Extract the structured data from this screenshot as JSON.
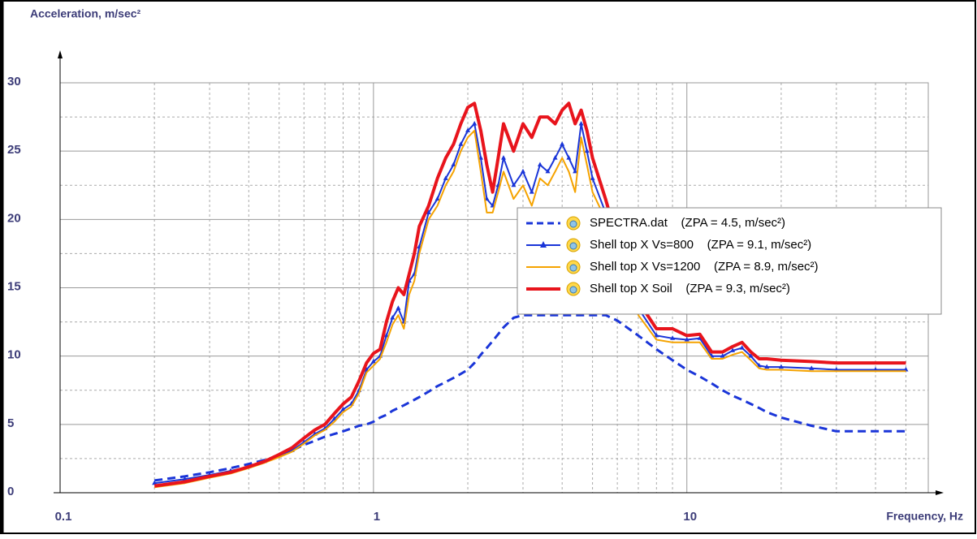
{
  "chart_data": {
    "type": "line",
    "y_label": "Acceleration, m/sec²",
    "x_label": "Frequency, Hz",
    "log_x": true,
    "grid": true,
    "legend_position": "right",
    "xlim": [
      0.1,
      60
    ],
    "ylim": [
      0,
      30
    ],
    "xticks": [
      0.1,
      1,
      10
    ],
    "yticks": [
      0,
      5,
      10,
      15,
      20,
      25,
      30
    ],
    "minor_xticks": [
      0.2,
      0.3,
      0.4,
      0.5,
      0.6,
      0.7,
      0.8,
      0.9,
      2,
      3,
      4,
      5,
      6,
      7,
      8,
      9,
      20,
      30,
      40,
      50
    ],
    "minor_yticks": [
      2.5,
      7.5,
      12.5,
      17.5,
      22.5,
      27.5
    ],
    "x": [
      0.2,
      0.25,
      0.3,
      0.35,
      0.4,
      0.45,
      0.5,
      0.55,
      0.6,
      0.65,
      0.7,
      0.75,
      0.8,
      0.85,
      0.9,
      0.95,
      1.0,
      1.05,
      1.1,
      1.15,
      1.2,
      1.25,
      1.3,
      1.35,
      1.4,
      1.5,
      1.6,
      1.7,
      1.8,
      1.9,
      2.0,
      2.1,
      2.2,
      2.3,
      2.4,
      2.5,
      2.6,
      2.8,
      3.0,
      3.2,
      3.4,
      3.6,
      3.8,
      4.0,
      4.2,
      4.4,
      4.6,
      4.8,
      5.0,
      5.5,
      6,
      7,
      8,
      9,
      10,
      11,
      12,
      13,
      14,
      15,
      16,
      17,
      18,
      20,
      25,
      30,
      40,
      50
    ],
    "series": [
      {
        "name": "SPECTRA.dat    (ZPA = 4.5, m/sec²)",
        "color": "#1a35d8",
        "style": "dashed",
        "values": [
          0.9,
          1.2,
          1.5,
          1.8,
          2.1,
          2.4,
          2.7,
          3.1,
          3.5,
          3.8,
          4.1,
          4.3,
          4.5,
          4.7,
          4.9,
          5.0,
          5.2,
          5.5,
          5.7,
          6.0,
          6.2,
          6.4,
          6.6,
          6.8,
          7.0,
          7.4,
          7.8,
          8.1,
          8.4,
          8.7,
          9.0,
          9.5,
          10.1,
          10.6,
          11.1,
          11.6,
          12.1,
          12.8,
          13.0,
          13.0,
          13.0,
          13.0,
          13.0,
          13.0,
          13.0,
          13.0,
          13.0,
          13.0,
          13.0,
          13.0,
          12.6,
          11.5,
          10.5,
          9.7,
          9.0,
          8.5,
          8.0,
          7.5,
          7.1,
          6.8,
          6.5,
          6.2,
          5.9,
          5.5,
          4.9,
          4.5,
          4.5,
          4.5
        ]
      },
      {
        "name": "Shell top X Vs=800    (ZPA = 9.1, m/sec²)",
        "color": "#1a35d8",
        "style": "triangles",
        "values": [
          0.7,
          1.0,
          1.3,
          1.6,
          1.9,
          2.3,
          2.7,
          3.1,
          3.7,
          4.3,
          4.7,
          5.4,
          6.1,
          6.5,
          7.5,
          9.0,
          9.6,
          10.0,
          11.5,
          12.8,
          13.5,
          12.5,
          15.5,
          16.0,
          18.0,
          20.5,
          21.5,
          23.0,
          24.0,
          25.5,
          26.5,
          27.0,
          24.5,
          21.5,
          21.0,
          22.5,
          24.5,
          22.5,
          23.5,
          22.0,
          24.0,
          23.5,
          24.5,
          25.5,
          24.5,
          23.5,
          27.0,
          25.0,
          23.0,
          20.5,
          17.5,
          13.5,
          11.5,
          11.3,
          11.2,
          11.3,
          10.0,
          10.0,
          10.4,
          10.6,
          10.0,
          9.3,
          9.2,
          9.2,
          9.1,
          9.0,
          9.0,
          9.0
        ]
      },
      {
        "name": "Shell top X Vs=1200    (ZPA = 8.9, m/sec²)",
        "color": "#f5a300",
        "style": "solid",
        "values": [
          0.4,
          0.7,
          1.1,
          1.4,
          1.8,
          2.2,
          2.6,
          3.0,
          3.6,
          4.2,
          4.6,
          5.2,
          5.9,
          6.3,
          7.3,
          8.8,
          9.3,
          9.8,
          11.0,
          12.3,
          13.0,
          12.0,
          14.5,
          15.5,
          17.5,
          20.0,
          21.0,
          22.5,
          23.5,
          25.0,
          26.0,
          26.5,
          23.5,
          20.5,
          20.5,
          22.0,
          23.5,
          21.5,
          22.5,
          21.0,
          23.0,
          22.5,
          23.5,
          24.5,
          23.5,
          22.0,
          26.0,
          24.0,
          22.0,
          20.0,
          17.0,
          13.0,
          11.2,
          11.0,
          11.0,
          11.0,
          9.8,
          9.8,
          10.1,
          10.3,
          9.7,
          9.1,
          9.0,
          9.0,
          8.9,
          8.9,
          8.9,
          8.9
        ]
      },
      {
        "name": "Shell top X Soil    (ZPA = 9.3, m/sec²)",
        "color": "#e8141c",
        "style": "thick",
        "values": [
          0.5,
          0.8,
          1.2,
          1.5,
          1.9,
          2.3,
          2.8,
          3.3,
          4.0,
          4.6,
          5.0,
          5.8,
          6.5,
          7.0,
          8.2,
          9.5,
          10.2,
          10.5,
          12.5,
          14.0,
          15.0,
          14.5,
          16.0,
          17.5,
          19.5,
          21.0,
          23.0,
          24.5,
          25.5,
          27.0,
          28.2,
          28.5,
          26.5,
          24.0,
          22.0,
          24.5,
          27.0,
          25.0,
          27.0,
          26.0,
          27.5,
          27.5,
          27.0,
          28.0,
          28.5,
          27.0,
          28.0,
          26.5,
          24.5,
          21.5,
          18.5,
          14.0,
          12.0,
          12.0,
          11.5,
          11.6,
          10.3,
          10.3,
          10.7,
          11.0,
          10.3,
          9.8,
          9.8,
          9.7,
          9.6,
          9.5,
          9.5,
          9.5
        ]
      }
    ]
  }
}
